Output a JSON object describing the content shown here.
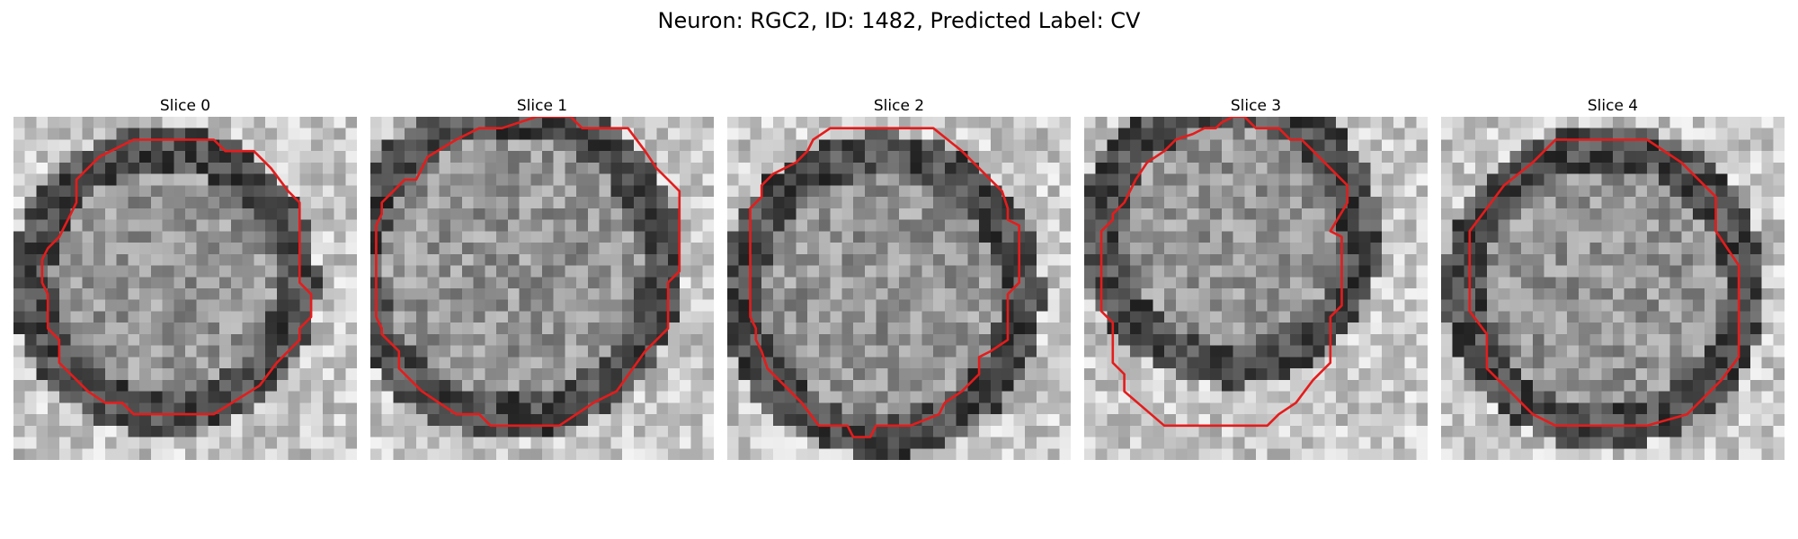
{
  "figure": {
    "title": "Neuron: RGC2, ID: 1482, Predicted Label: CV"
  },
  "colors": {
    "contour": "#e51c1c",
    "background": "#ffffff"
  },
  "slices": [
    {
      "title": "Slice 0",
      "contour": [
        [
          10.5,
          2
        ],
        [
          17.5,
          2
        ],
        [
          18.5,
          3
        ],
        [
          21,
          3
        ],
        [
          22.5,
          4.5
        ],
        [
          24,
          6.5
        ],
        [
          25,
          7.5
        ],
        [
          25,
          14.5
        ],
        [
          26,
          15.5
        ],
        [
          26,
          17.5
        ],
        [
          25,
          18.5
        ],
        [
          25,
          19.5
        ],
        [
          24,
          20.5
        ],
        [
          23,
          21.5
        ],
        [
          21.5,
          23.5
        ],
        [
          17.5,
          26
        ],
        [
          10.5,
          26
        ],
        [
          9.5,
          25
        ],
        [
          8,
          25
        ],
        [
          6.5,
          24
        ],
        [
          5,
          22.5
        ],
        [
          4,
          21.5
        ],
        [
          4,
          19.5
        ],
        [
          3,
          18.5
        ],
        [
          3,
          15.5
        ],
        [
          2.5,
          14.5
        ],
        [
          2.5,
          12.5
        ],
        [
          3,
          11.5
        ],
        [
          4,
          10.5
        ],
        [
          4.5,
          9.5
        ],
        [
          5,
          8.5
        ],
        [
          5.5,
          7.5
        ],
        [
          5.5,
          5.5
        ],
        [
          7.5,
          3.5
        ]
      ]
    },
    {
      "title": "Slice 1",
      "contour": [
        [
          9.5,
          1
        ],
        [
          11.5,
          1
        ],
        [
          14.5,
          0
        ],
        [
          17.5,
          0
        ],
        [
          18.5,
          1
        ],
        [
          22.5,
          1
        ],
        [
          24,
          3
        ],
        [
          25,
          4.5
        ],
        [
          26,
          5.5
        ],
        [
          27,
          6.5
        ],
        [
          27,
          13.5
        ],
        [
          26,
          14.5
        ],
        [
          26,
          18.5
        ],
        [
          25,
          19.5
        ],
        [
          24,
          20.5
        ],
        [
          21.5,
          24
        ],
        [
          19.5,
          25
        ],
        [
          16.5,
          27
        ],
        [
          10.5,
          27
        ],
        [
          9.5,
          26
        ],
        [
          7.5,
          26
        ],
        [
          6,
          25
        ],
        [
          4.5,
          24
        ],
        [
          3.5,
          23
        ],
        [
          2.5,
          22
        ],
        [
          2.5,
          20.5
        ],
        [
          1,
          19
        ],
        [
          1,
          18.5
        ],
        [
          0.5,
          17.5
        ],
        [
          0.5,
          9.5
        ],
        [
          1,
          8.5
        ],
        [
          1,
          7.5
        ],
        [
          2,
          6.5
        ],
        [
          3,
          5.5
        ],
        [
          4,
          5.5
        ],
        [
          5,
          3.5
        ],
        [
          7.5,
          2
        ]
      ]
    },
    {
      "title": "Slice 2",
      "contour": [
        [
          9,
          1
        ],
        [
          18,
          1
        ],
        [
          20.5,
          3
        ],
        [
          22.5,
          5
        ],
        [
          24,
          6.5
        ],
        [
          24.5,
          8
        ],
        [
          24.5,
          9
        ],
        [
          25.5,
          9.5
        ],
        [
          25.5,
          14.5
        ],
        [
          24.5,
          15.5
        ],
        [
          24.5,
          19.5
        ],
        [
          23,
          20.5
        ],
        [
          22,
          21
        ],
        [
          22,
          22.5
        ],
        [
          20.5,
          24
        ],
        [
          19,
          25
        ],
        [
          18.5,
          26
        ],
        [
          16,
          27
        ],
        [
          13,
          27
        ],
        [
          12.5,
          28
        ],
        [
          11,
          28
        ],
        [
          10.5,
          27
        ],
        [
          8,
          27
        ],
        [
          6.5,
          25
        ],
        [
          5,
          23.5
        ],
        [
          3.5,
          22
        ],
        [
          3,
          20.5
        ],
        [
          2.5,
          19.5
        ],
        [
          2.5,
          18.5
        ],
        [
          2,
          17.5
        ],
        [
          2,
          8
        ],
        [
          3,
          7
        ],
        [
          3,
          6
        ],
        [
          4,
          5
        ],
        [
          6,
          4
        ],
        [
          7,
          3
        ],
        [
          7.5,
          2
        ]
      ]
    },
    {
      "title": "Slice 3",
      "contour": [
        [
          8,
          2
        ],
        [
          9.5,
          1.5
        ],
        [
          10.5,
          1
        ],
        [
          11.5,
          1
        ],
        [
          12,
          0.5
        ],
        [
          13,
          0
        ],
        [
          14,
          0
        ],
        [
          15,
          1
        ],
        [
          17,
          1
        ],
        [
          18,
          2
        ],
        [
          19,
          2
        ],
        [
          20,
          3
        ],
        [
          21,
          4
        ],
        [
          22,
          5
        ],
        [
          23,
          6
        ],
        [
          23,
          7.5
        ],
        [
          21.5,
          10
        ],
        [
          22.5,
          10.5
        ],
        [
          22.5,
          16.5
        ],
        [
          21.5,
          17.5
        ],
        [
          21.5,
          21.5
        ],
        [
          20,
          23
        ],
        [
          18.5,
          25
        ],
        [
          17,
          26
        ],
        [
          16,
          27
        ],
        [
          7,
          27
        ],
        [
          3.5,
          24
        ],
        [
          3.5,
          22.5
        ],
        [
          2.5,
          21.5
        ],
        [
          2.5,
          18
        ],
        [
          1.5,
          17
        ],
        [
          1.5,
          10
        ],
        [
          2.5,
          9
        ],
        [
          2.5,
          8.5
        ],
        [
          3.5,
          7.5
        ],
        [
          4.5,
          5.5
        ],
        [
          5.5,
          4
        ],
        [
          7,
          3
        ]
      ]
    },
    {
      "title": "Slice 4",
      "contour": [
        [
          10,
          2
        ],
        [
          18,
          2
        ],
        [
          21,
          4
        ],
        [
          23,
          6
        ],
        [
          24,
          7
        ],
        [
          24,
          10
        ],
        [
          26,
          13
        ],
        [
          26,
          21
        ],
        [
          24.5,
          23
        ],
        [
          23,
          24.5
        ],
        [
          21.5,
          26
        ],
        [
          18,
          27
        ],
        [
          10,
          27
        ],
        [
          8,
          26
        ],
        [
          6,
          24
        ],
        [
          4,
          22
        ],
        [
          4,
          19
        ],
        [
          2.5,
          17
        ],
        [
          2.5,
          10
        ],
        [
          4,
          8
        ],
        [
          5.5,
          6
        ],
        [
          8,
          4
        ]
      ]
    }
  ]
}
